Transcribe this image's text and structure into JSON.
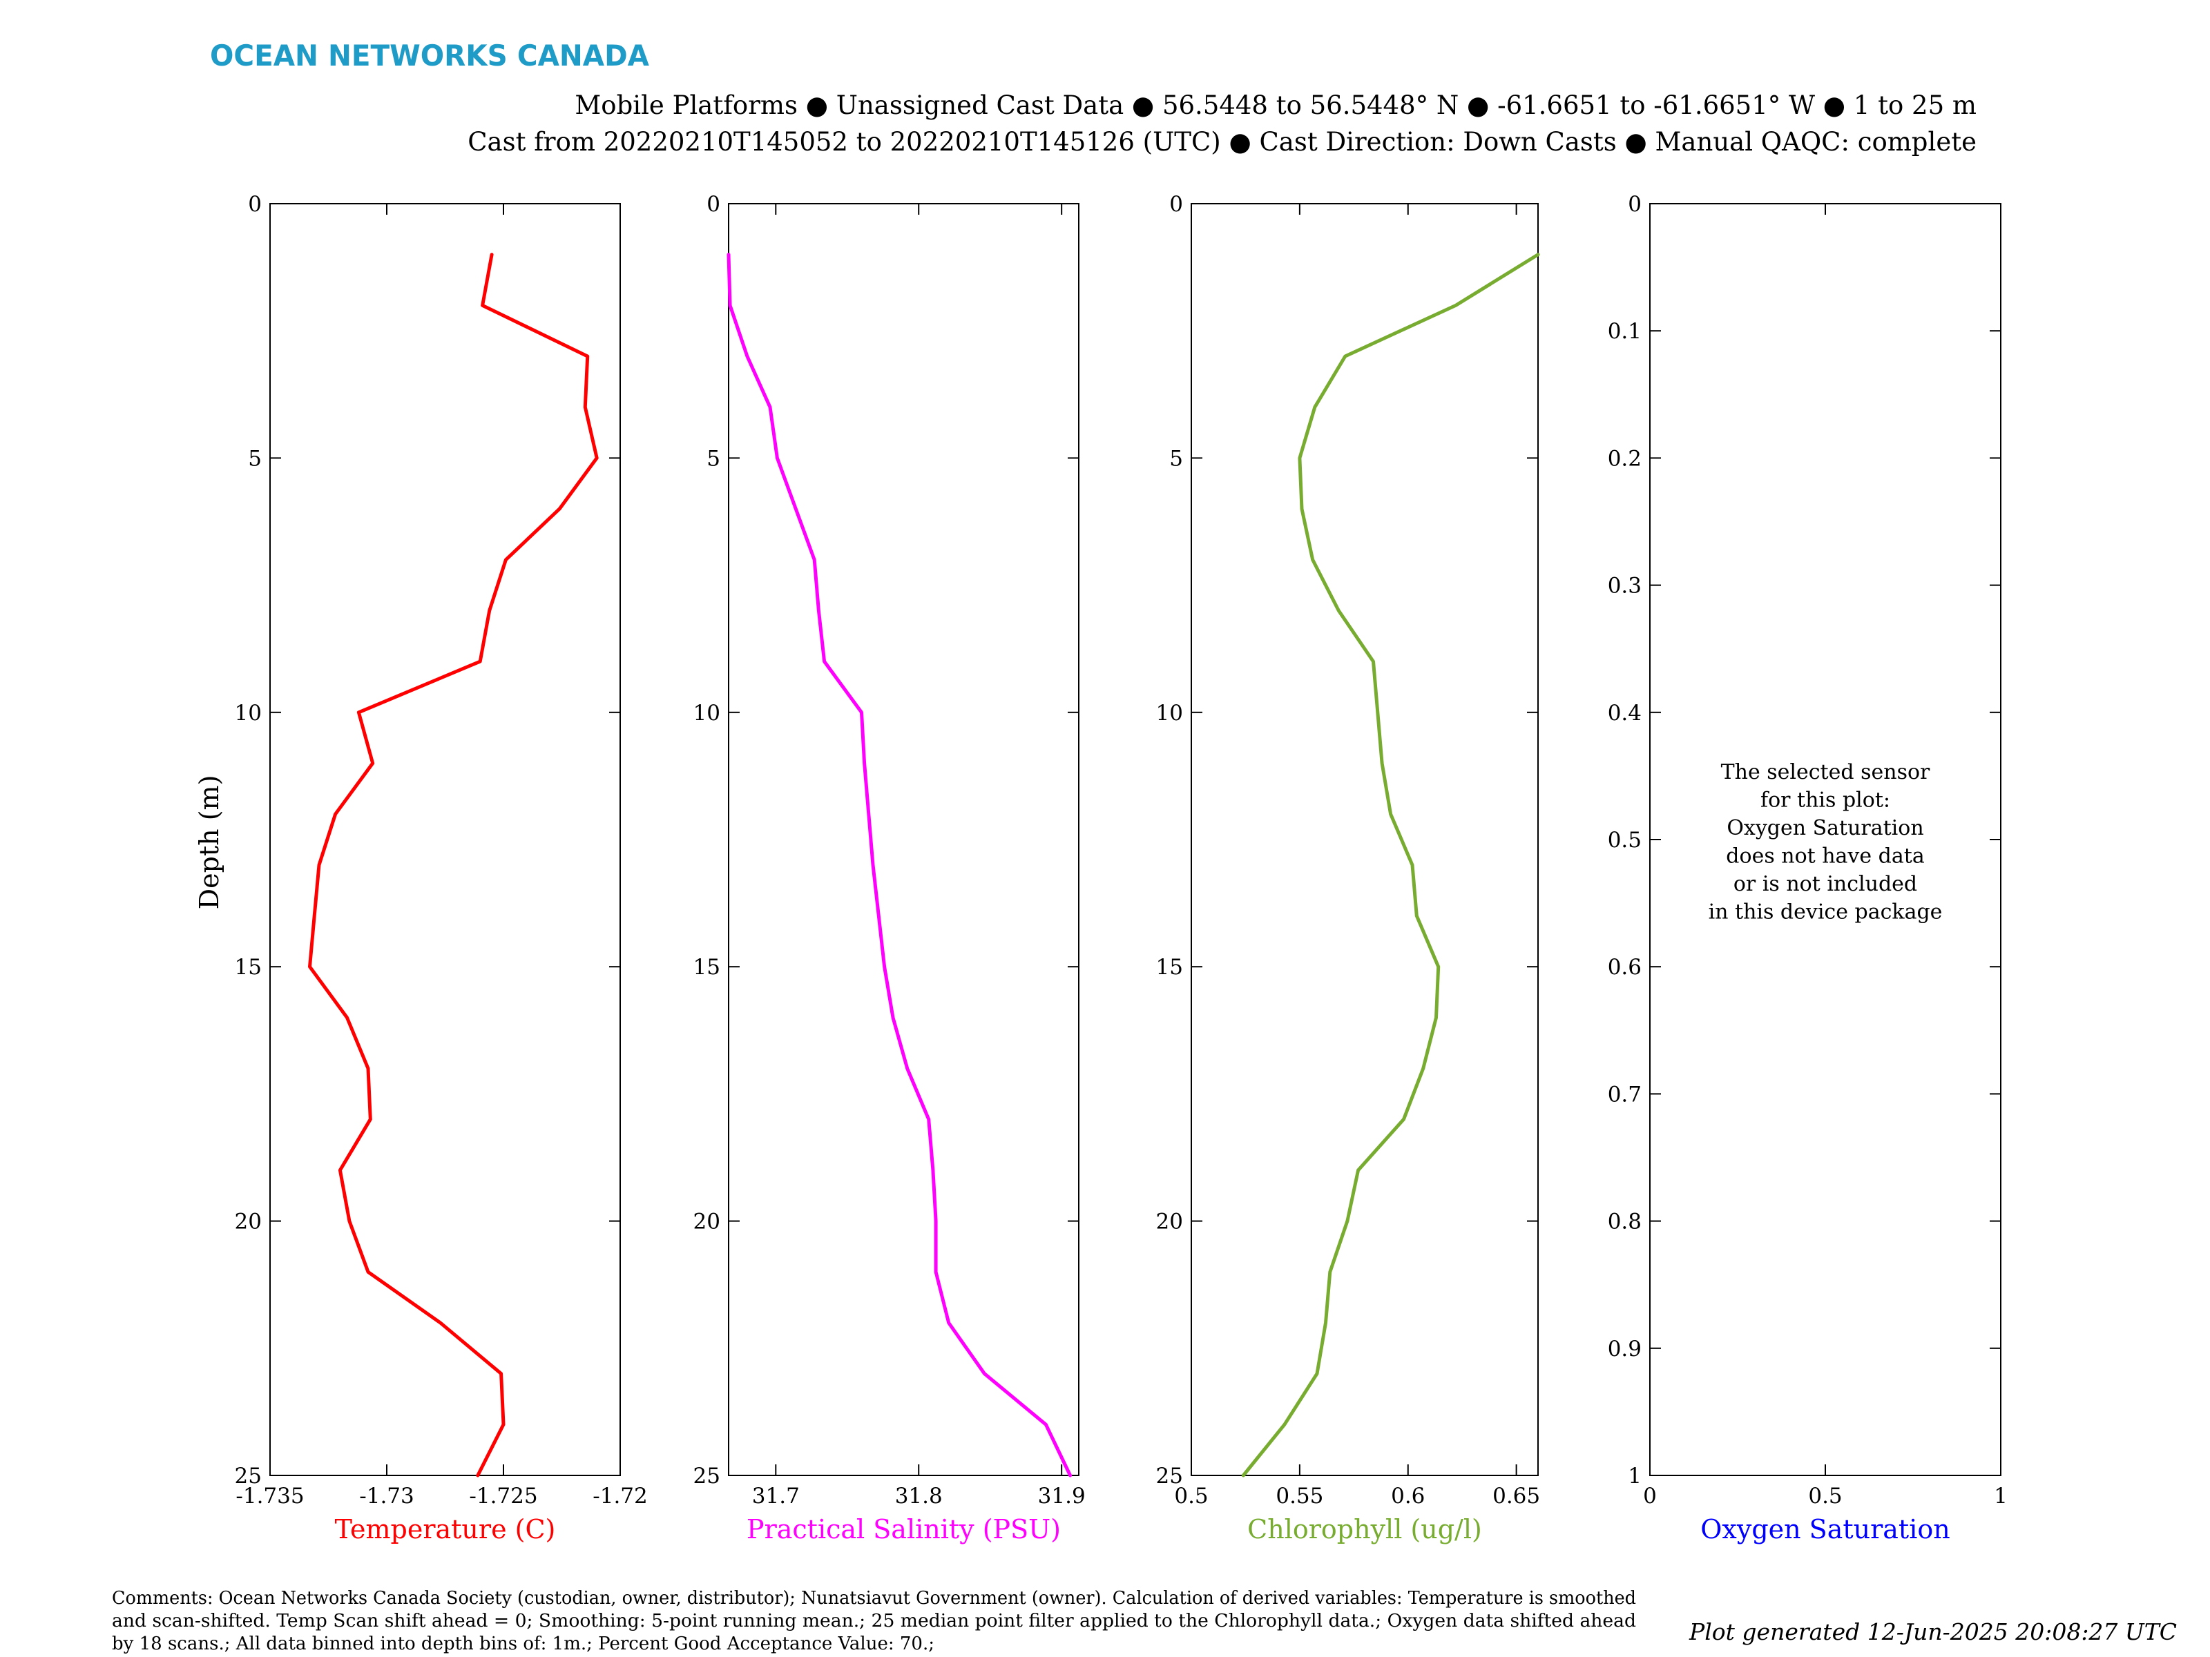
{
  "brand": "OCEAN NETWORKS CANADA",
  "header": {
    "line1": "Mobile Platforms ● Unassigned Cast Data ● 56.5448 to 56.5448° N ● -61.6651 to -61.6651° W ● 1 to 25 m",
    "line2": "Cast from 20220210T145052 to 20220210T145126 (UTC) ● Cast Direction: Down Casts ● Manual QAQC: complete"
  },
  "y_axis_label": "Depth (m)",
  "comments": [
    "Comments: Ocean Networks Canada Society (custodian, owner, distributor); Nunatsiavut Government (owner). Calculation of derived variables: Temperature is smoothed",
    "and scan-shifted. Temp Scan shift ahead = 0; Smoothing: 5-point running mean.; 25 median point filter applied to the Chlorophyll data.; Oxygen data shifted ahead",
    "by 18 scans.; All data binned into depth bins of: 1m.; Percent Good Acceptance Value: 70.;"
  ],
  "generated": "Plot generated 12-Jun-2025 20:08:27 UTC",
  "chart_data": [
    {
      "type": "line",
      "xlabel": "Temperature (C)",
      "ylabel": "Depth (m)",
      "color": "#ff0000",
      "xlim": [
        -1.735,
        -1.72
      ],
      "ylim": [
        0,
        25
      ],
      "y_reversed": true,
      "xticks": [
        "-1.735",
        "-1.73",
        "-1.725",
        "-1.72"
      ],
      "xtick_values": [
        -1.735,
        -1.73,
        -1.725,
        -1.72
      ],
      "yticks": [
        "0",
        "5",
        "10",
        "15",
        "20",
        "25"
      ],
      "ytick_values": [
        0,
        5,
        10,
        15,
        20,
        25
      ],
      "series": [
        {
          "x": [
            -1.7255,
            -1.7259,
            -1.7214,
            -1.7215,
            -1.721,
            -1.7226,
            -1.7249,
            -1.7256,
            -1.726,
            -1.7312,
            -1.7306,
            -1.7322,
            -1.7329,
            -1.7331,
            -1.7333,
            -1.7317,
            -1.7308,
            -1.7307,
            -1.732,
            -1.7316,
            -1.7308,
            -1.7277,
            -1.7251,
            -1.725,
            -1.7261
          ],
          "y": [
            1,
            2,
            3,
            4,
            5,
            6,
            7,
            8,
            9,
            10,
            11,
            12,
            13,
            14,
            15,
            16,
            17,
            18,
            19,
            20,
            21,
            22,
            23,
            24,
            25
          ]
        }
      ]
    },
    {
      "type": "line",
      "xlabel": "Practical Salinity (PSU)",
      "ylabel": "",
      "color": "#ff00ff",
      "xlim": [
        31.667,
        31.912
      ],
      "ylim": [
        0,
        25
      ],
      "y_reversed": true,
      "xticks": [
        "31.7",
        "31.8",
        "31.9"
      ],
      "xtick_values": [
        31.7,
        31.8,
        31.9
      ],
      "yticks": [
        "0",
        "5",
        "10",
        "15",
        "20",
        "25"
      ],
      "ytick_values": [
        0,
        5,
        10,
        15,
        20,
        25
      ],
      "series": [
        {
          "x": [
            31.667,
            31.668,
            31.68,
            31.696,
            31.701,
            31.714,
            31.727,
            31.73,
            31.734,
            31.76,
            31.762,
            31.765,
            31.768,
            31.772,
            31.776,
            31.782,
            31.792,
            31.807,
            31.81,
            31.812,
            31.812,
            31.821,
            31.846,
            31.889,
            31.906
          ],
          "y": [
            1,
            2,
            3,
            4,
            5,
            6,
            7,
            8,
            9,
            10,
            11,
            12,
            13,
            14,
            15,
            16,
            17,
            18,
            19,
            20,
            21,
            22,
            23,
            24,
            25
          ]
        }
      ]
    },
    {
      "type": "line",
      "xlabel": "Chlorophyll (ug/l)",
      "ylabel": "",
      "color": "#77ac30",
      "xlim": [
        0.5,
        0.66
      ],
      "ylim": [
        0,
        25
      ],
      "y_reversed": true,
      "xticks": [
        "0.5",
        "0.55",
        "0.6",
        "0.65"
      ],
      "xtick_values": [
        0.5,
        0.55,
        0.6,
        0.65
      ],
      "yticks": [
        "0",
        "5",
        "10",
        "15",
        "20",
        "25"
      ],
      "ytick_values": [
        0,
        5,
        10,
        15,
        20,
        25
      ],
      "series": [
        {
          "x": [
            0.66,
            0.622,
            0.571,
            0.557,
            0.55,
            0.551,
            0.556,
            0.568,
            0.584,
            0.586,
            0.588,
            0.592,
            0.602,
            0.604,
            0.614,
            0.613,
            0.607,
            0.598,
            0.577,
            0.572,
            0.564,
            0.562,
            0.558,
            0.543,
            0.524
          ],
          "y": [
            1,
            2,
            3,
            4,
            5,
            6,
            7,
            8,
            9,
            10,
            11,
            12,
            13,
            14,
            15,
            16,
            17,
            18,
            19,
            20,
            21,
            22,
            23,
            24,
            25
          ]
        }
      ]
    },
    {
      "type": "line",
      "xlabel": "Oxygen Saturation",
      "ylabel": "",
      "color": "#0000ff",
      "xlim": [
        0,
        1
      ],
      "ylim": [
        0,
        1
      ],
      "y_reversed": true,
      "xticks": [
        "0",
        "0.5",
        "1"
      ],
      "xtick_values": [
        0,
        0.5,
        1
      ],
      "yticks": [
        "0",
        "0.1",
        "0.2",
        "0.3",
        "0.4",
        "0.5",
        "0.6",
        "0.7",
        "0.8",
        "0.9",
        "1"
      ],
      "ytick_values": [
        0,
        0.1,
        0.2,
        0.3,
        0.4,
        0.5,
        0.6,
        0.7,
        0.8,
        0.9,
        1
      ],
      "series": [],
      "annotation": [
        "The selected sensor",
        "for this plot:",
        "Oxygen Saturation",
        "does not have data",
        "or is not included",
        "in this device package"
      ]
    }
  ]
}
